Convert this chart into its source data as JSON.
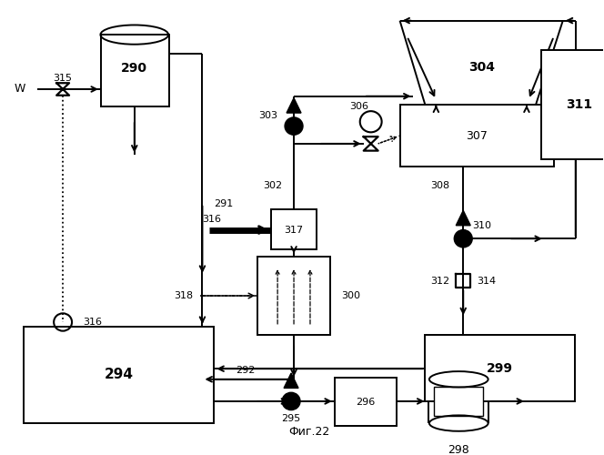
{
  "title": "Фиг.22",
  "bg_color": "#ffffff",
  "fig_w": 6.64,
  "fig_h": 5.0,
  "dpi": 100
}
